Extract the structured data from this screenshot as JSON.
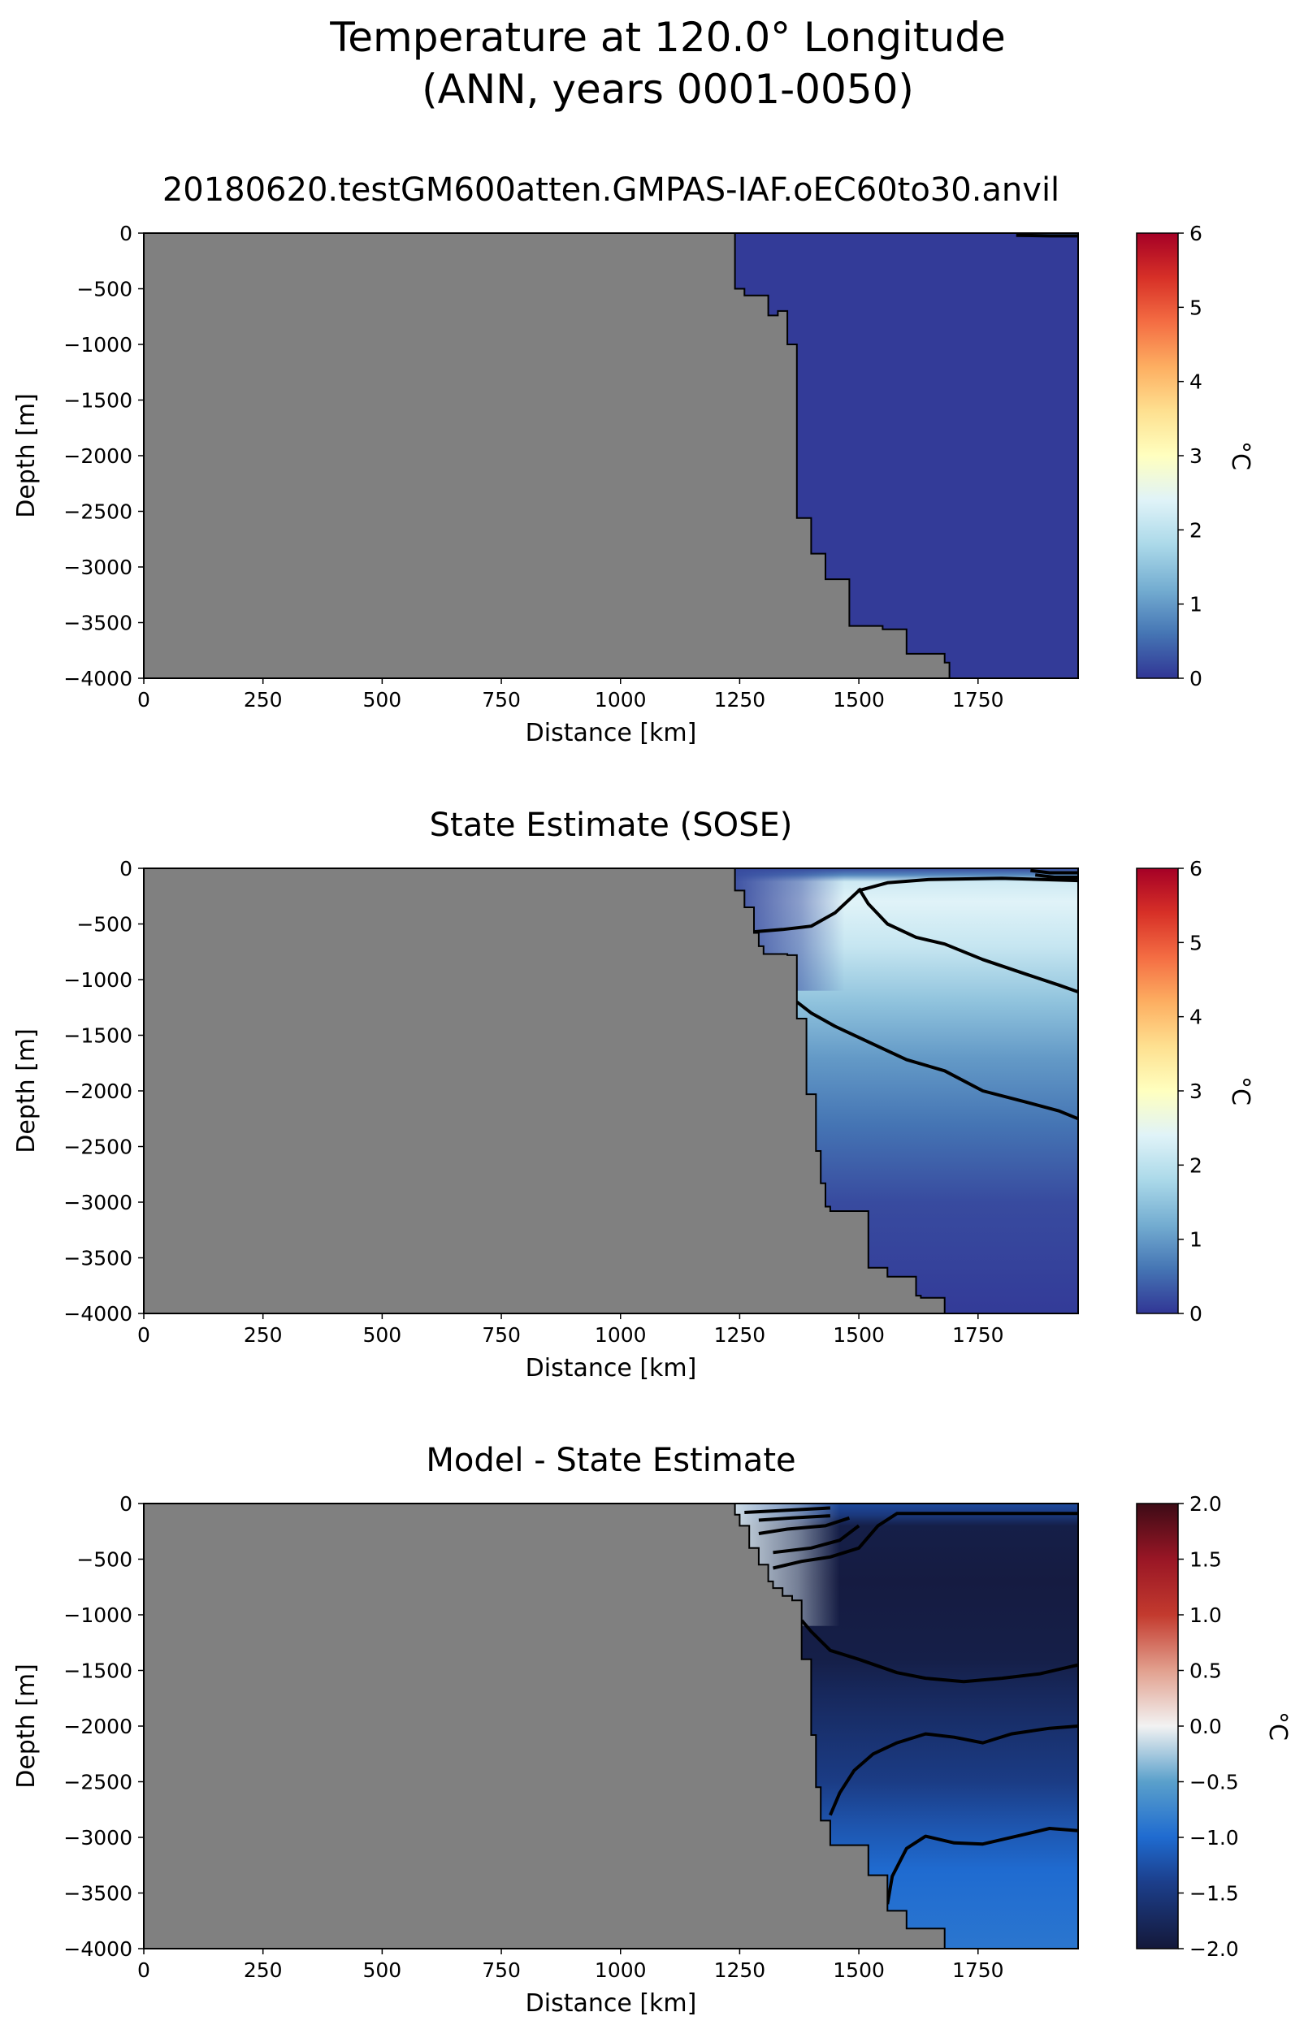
{
  "figure": {
    "title_line1": "Temperature at 120.0° Longitude",
    "title_line2": "(ANN, years 0001-0050)"
  },
  "chart_data": [
    {
      "type": "heatmap",
      "title": "20180620.testGM600atten.GMPAS-IAF.oEC60to30.anvil",
      "xlabel": "Distance [km]",
      "ylabel": "Depth [m]",
      "xlim": [
        0,
        1960
      ],
      "ylim": [
        -4000,
        0
      ],
      "xticks": [
        0,
        250,
        500,
        750,
        1000,
        1250,
        1500,
        1750
      ],
      "yticks": [
        0,
        -500,
        -1000,
        -1500,
        -2000,
        -2500,
        -3000,
        -3500,
        -4000
      ],
      "grid": false,
      "colorbar": {
        "label": "°C",
        "min": 0,
        "max": 6,
        "ticks": [
          0,
          1,
          2,
          3,
          4,
          5,
          6
        ],
        "colormap": "RdYlBu_r"
      },
      "land_color": "#808080",
      "bathymetry": [
        [
          1240,
          0
        ],
        [
          1240,
          -500
        ],
        [
          1260,
          -500
        ],
        [
          1260,
          -560
        ],
        [
          1310,
          -560
        ],
        [
          1310,
          -740
        ],
        [
          1330,
          -740
        ],
        [
          1330,
          -700
        ],
        [
          1350,
          -700
        ],
        [
          1350,
          -1000
        ],
        [
          1370,
          -1000
        ],
        [
          1370,
          -2560
        ],
        [
          1400,
          -2560
        ],
        [
          1400,
          -2880
        ],
        [
          1430,
          -2880
        ],
        [
          1430,
          -3110
        ],
        [
          1480,
          -3110
        ],
        [
          1480,
          -3530
        ],
        [
          1550,
          -3530
        ],
        [
          1550,
          -3560
        ],
        [
          1600,
          -3560
        ],
        [
          1600,
          -3780
        ],
        [
          1680,
          -3780
        ],
        [
          1680,
          -3860
        ],
        [
          1690,
          -3860
        ],
        [
          1690,
          -4000
        ]
      ],
      "field": {
        "stops": [
          [
            -4000,
            0.05
          ],
          [
            0,
            0.05
          ]
        ],
        "surface": {
          "x_from": 1830,
          "depth": 30,
          "value": 0.6
        }
      },
      "contours": [
        {
          "level": 1,
          "points": [
            [
              1830,
              -20
            ],
            [
              1900,
              -25
            ],
            [
              1960,
              -25
            ]
          ]
        }
      ]
    },
    {
      "type": "heatmap",
      "title": "State Estimate (SOSE)",
      "xlabel": "Distance [km]",
      "ylabel": "Depth [m]",
      "xlim": [
        0,
        1960
      ],
      "ylim": [
        -4000,
        0
      ],
      "xticks": [
        0,
        250,
        500,
        750,
        1000,
        1250,
        1500,
        1750
      ],
      "yticks": [
        0,
        -500,
        -1000,
        -1500,
        -2000,
        -2500,
        -3000,
        -3500,
        -4000
      ],
      "grid": false,
      "colorbar": {
        "label": "°C",
        "min": 0,
        "max": 6,
        "ticks": [
          0,
          1,
          2,
          3,
          4,
          5,
          6
        ],
        "colormap": "RdYlBu_r"
      },
      "land_color": "#808080",
      "bathymetry": [
        [
          1240,
          0
        ],
        [
          1240,
          -200
        ],
        [
          1260,
          -200
        ],
        [
          1260,
          -350
        ],
        [
          1280,
          -350
        ],
        [
          1280,
          -580
        ],
        [
          1290,
          -580
        ],
        [
          1290,
          -700
        ],
        [
          1300,
          -700
        ],
        [
          1300,
          -770
        ],
        [
          1330,
          -770
        ],
        [
          1330,
          -770
        ],
        [
          1350,
          -770
        ],
        [
          1350,
          -780
        ],
        [
          1370,
          -780
        ],
        [
          1370,
          -1350
        ],
        [
          1390,
          -1350
        ],
        [
          1390,
          -2030
        ],
        [
          1410,
          -2030
        ],
        [
          1410,
          -2540
        ],
        [
          1420,
          -2540
        ],
        [
          1420,
          -2830
        ],
        [
          1430,
          -2830
        ],
        [
          1430,
          -3040
        ],
        [
          1440,
          -3040
        ],
        [
          1440,
          -3080
        ],
        [
          1520,
          -3080
        ],
        [
          1520,
          -3590
        ],
        [
          1560,
          -3590
        ],
        [
          1560,
          -3670
        ],
        [
          1620,
          -3670
        ],
        [
          1620,
          -3840
        ],
        [
          1630,
          -3840
        ],
        [
          1630,
          -3860
        ],
        [
          1680,
          -3860
        ],
        [
          1680,
          -4000
        ]
      ],
      "field": {
        "stops": [
          [
            -4000,
            0.05
          ],
          [
            -3000,
            0.2
          ],
          [
            -2300,
            0.6
          ],
          [
            -1700,
            1.0
          ],
          [
            -1200,
            1.5
          ],
          [
            -700,
            2.1
          ],
          [
            -300,
            2.4
          ],
          [
            -120,
            2.2
          ],
          [
            -60,
            0.8
          ],
          [
            0,
            0.2
          ]
        ],
        "shelf": {
          "x_to": 1470,
          "value": 0.2
        }
      },
      "contours": [
        {
          "level": 2,
          "points": [
            [
              1280,
              -570
            ],
            [
              1340,
              -550
            ],
            [
              1400,
              -520
            ],
            [
              1450,
              -400
            ],
            [
              1500,
              -200
            ],
            [
              1560,
              -130
            ],
            [
              1650,
              -100
            ],
            [
              1800,
              -90
            ],
            [
              1960,
              -110
            ]
          ]
        },
        {
          "level": 2,
          "points": [
            [
              1500,
              -180
            ],
            [
              1520,
              -320
            ],
            [
              1560,
              -500
            ],
            [
              1620,
              -620
            ],
            [
              1680,
              -680
            ],
            [
              1760,
              -820
            ],
            [
              1850,
              -950
            ],
            [
              1920,
              -1050
            ],
            [
              1960,
              -1110
            ]
          ]
        },
        {
          "level": 1,
          "points": [
            [
              1370,
              -1200
            ],
            [
              1400,
              -1300
            ],
            [
              1450,
              -1420
            ],
            [
              1520,
              -1560
            ],
            [
              1600,
              -1720
            ],
            [
              1680,
              -1820
            ],
            [
              1760,
              -2000
            ],
            [
              1850,
              -2100
            ],
            [
              1920,
              -2180
            ],
            [
              1960,
              -2250
            ]
          ]
        },
        {
          "level": 0.5,
          "points": [
            [
              1860,
              -20
            ],
            [
              1900,
              -40
            ],
            [
              1960,
              -40
            ]
          ]
        },
        {
          "level": 0.5,
          "points": [
            [
              1870,
              -60
            ],
            [
              1910,
              -80
            ],
            [
              1960,
              -80
            ]
          ]
        }
      ]
    },
    {
      "type": "heatmap",
      "title": "Model - State Estimate",
      "xlabel": "Distance [km]",
      "ylabel": "Depth [m]",
      "xlim": [
        0,
        1960
      ],
      "ylim": [
        -4000,
        0
      ],
      "xticks": [
        0,
        250,
        500,
        750,
        1000,
        1250,
        1500,
        1750
      ],
      "yticks": [
        0,
        -500,
        -1000,
        -1500,
        -2000,
        -2500,
        -3000,
        -3500,
        -4000
      ],
      "grid": false,
      "colorbar": {
        "label": "°C",
        "min": -2,
        "max": 2,
        "ticks": [
          2.0,
          1.5,
          1.0,
          0.5,
          0.0,
          -0.5,
          -1.0,
          -1.5,
          -2.0
        ],
        "colormap": "RdBu_r"
      },
      "land_color": "#808080",
      "bathymetry": [
        [
          1240,
          0
        ],
        [
          1240,
          -100
        ],
        [
          1250,
          -100
        ],
        [
          1250,
          -200
        ],
        [
          1270,
          -200
        ],
        [
          1270,
          -400
        ],
        [
          1290,
          -400
        ],
        [
          1290,
          -550
        ],
        [
          1310,
          -550
        ],
        [
          1310,
          -700
        ],
        [
          1320,
          -700
        ],
        [
          1320,
          -760
        ],
        [
          1340,
          -760
        ],
        [
          1340,
          -830
        ],
        [
          1350,
          -830
        ],
        [
          1350,
          -830
        ],
        [
          1360,
          -830
        ],
        [
          1360,
          -870
        ],
        [
          1380,
          -870
        ],
        [
          1380,
          -1400
        ],
        [
          1400,
          -1400
        ],
        [
          1400,
          -2080
        ],
        [
          1410,
          -2080
        ],
        [
          1410,
          -2550
        ],
        [
          1420,
          -2550
        ],
        [
          1420,
          -2850
        ],
        [
          1440,
          -2850
        ],
        [
          1440,
          -3070
        ],
        [
          1520,
          -3070
        ],
        [
          1520,
          -3340
        ],
        [
          1560,
          -3340
        ],
        [
          1560,
          -3660
        ],
        [
          1600,
          -3660
        ],
        [
          1600,
          -3820
        ],
        [
          1680,
          -3820
        ],
        [
          1680,
          -4000
        ]
      ],
      "field": {
        "stops": [
          [
            -4000,
            -0.9
          ],
          [
            -3300,
            -1.0
          ],
          [
            -2900,
            -1.2
          ],
          [
            -2500,
            -1.45
          ],
          [
            -2100,
            -1.6
          ],
          [
            -1700,
            -1.75
          ],
          [
            -1400,
            -1.9
          ],
          [
            -700,
            -1.95
          ],
          [
            -200,
            -1.9
          ],
          [
            -100,
            -1.5
          ],
          [
            0,
            -1.3
          ]
        ],
        "shelf": {
          "x_to": 1460,
          "value": -0.1
        }
      },
      "contours": [
        {
          "level": -1.75,
          "points": [
            [
              1380,
              -1050
            ],
            [
              1400,
              -1150
            ],
            [
              1440,
              -1320
            ],
            [
              1500,
              -1400
            ],
            [
              1580,
              -1520
            ],
            [
              1640,
              -1570
            ],
            [
              1720,
              -1600
            ],
            [
              1800,
              -1570
            ],
            [
              1880,
              -1530
            ],
            [
              1960,
              -1450
            ]
          ]
        },
        {
          "level": -1.5,
          "points": [
            [
              1440,
              -2800
            ],
            [
              1460,
              -2600
            ],
            [
              1490,
              -2400
            ],
            [
              1530,
              -2250
            ],
            [
              1580,
              -2150
            ],
            [
              1640,
              -2070
            ],
            [
              1700,
              -2100
            ],
            [
              1760,
              -2150
            ],
            [
              1820,
              -2070
            ],
            [
              1900,
              -2020
            ],
            [
              1960,
              -2000
            ]
          ]
        },
        {
          "level": -1.25,
          "points": [
            [
              1560,
              -3600
            ],
            [
              1570,
              -3350
            ],
            [
              1600,
              -3100
            ],
            [
              1640,
              -2990
            ],
            [
              1700,
              -3050
            ],
            [
              1760,
              -3060
            ],
            [
              1840,
              -2980
            ],
            [
              1900,
              -2920
            ],
            [
              1960,
              -2940
            ]
          ]
        },
        {
          "level": -1.5,
          "points": [
            [
              1320,
              -580
            ],
            [
              1380,
              -520
            ],
            [
              1440,
              -480
            ],
            [
              1500,
              -400
            ],
            [
              1540,
              -200
            ],
            [
              1580,
              -90
            ],
            [
              1960,
              -90
            ]
          ]
        },
        {
          "level": -1.25,
          "points": [
            [
              1320,
              -440
            ],
            [
              1400,
              -400
            ],
            [
              1460,
              -330
            ],
            [
              1500,
              -200
            ]
          ]
        },
        {
          "level": -1.0,
          "points": [
            [
              1290,
              -270
            ],
            [
              1350,
              -230
            ],
            [
              1430,
              -200
            ],
            [
              1480,
              -130
            ]
          ]
        },
        {
          "level": -0.75,
          "points": [
            [
              1290,
              -150
            ],
            [
              1360,
              -130
            ],
            [
              1440,
              -110
            ]
          ]
        },
        {
          "level": -0.5,
          "points": [
            [
              1260,
              -80
            ],
            [
              1350,
              -60
            ],
            [
              1440,
              -40
            ]
          ]
        }
      ]
    }
  ]
}
